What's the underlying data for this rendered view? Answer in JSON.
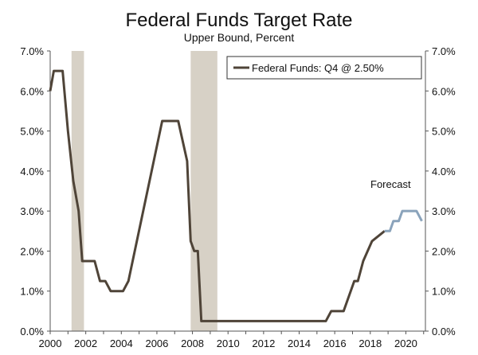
{
  "chart_data": {
    "type": "line",
    "title": "Federal Funds Target Rate",
    "subtitle": "Upper Bound, Percent",
    "xlabel": "",
    "ylabel": "",
    "xlim": [
      2000,
      2021.1
    ],
    "ylim": [
      0,
      7
    ],
    "y_ticks": [
      {
        "value": 0,
        "label": "0.0%"
      },
      {
        "value": 1,
        "label": "1.0%"
      },
      {
        "value": 2,
        "label": "2.0%"
      },
      {
        "value": 3,
        "label": "3.0%"
      },
      {
        "value": 4,
        "label": "4.0%"
      },
      {
        "value": 5,
        "label": "5.0%"
      },
      {
        "value": 6,
        "label": "6.0%"
      },
      {
        "value": 7,
        "label": "7.0%"
      }
    ],
    "x_ticks": [
      {
        "value": 2000,
        "label": "2000"
      },
      {
        "value": 2002,
        "label": "2002"
      },
      {
        "value": 2004,
        "label": "2004"
      },
      {
        "value": 2006,
        "label": "2006"
      },
      {
        "value": 2008,
        "label": "2008"
      },
      {
        "value": 2010,
        "label": "2010"
      },
      {
        "value": 2012,
        "label": "2012"
      },
      {
        "value": 2014,
        "label": "2014"
      },
      {
        "value": 2016,
        "label": "2016"
      },
      {
        "value": 2018,
        "label": "2018"
      },
      {
        "value": 2020,
        "label": "2020"
      }
    ],
    "recessions": [
      {
        "start": 2001.2,
        "end": 2001.9
      },
      {
        "start": 2007.9,
        "end": 2009.4
      }
    ],
    "legend": {
      "label": "Federal Funds: Q4 @ 2.50%",
      "position": "top-right"
    },
    "annotation": {
      "text": "Forecast"
    },
    "series": [
      {
        "name": "Federal Funds (Actual)",
        "color": "#4f4438",
        "points": [
          [
            2000.0,
            6.0
          ],
          [
            2000.2,
            6.5
          ],
          [
            2000.7,
            6.5
          ],
          [
            2001.0,
            5.0
          ],
          [
            2001.3,
            3.75
          ],
          [
            2001.6,
            3.0
          ],
          [
            2001.8,
            1.75
          ],
          [
            2002.5,
            1.75
          ],
          [
            2002.8,
            1.25
          ],
          [
            2003.1,
            1.25
          ],
          [
            2003.4,
            1.0
          ],
          [
            2004.1,
            1.0
          ],
          [
            2004.4,
            1.25
          ],
          [
            2006.3,
            5.25
          ],
          [
            2007.2,
            5.25
          ],
          [
            2007.7,
            4.25
          ],
          [
            2007.9,
            2.25
          ],
          [
            2008.1,
            2.0
          ],
          [
            2008.3,
            2.0
          ],
          [
            2008.5,
            0.25
          ],
          [
            2015.5,
            0.25
          ],
          [
            2015.8,
            0.5
          ],
          [
            2016.5,
            0.5
          ],
          [
            2017.1,
            1.25
          ],
          [
            2017.3,
            1.25
          ],
          [
            2017.6,
            1.75
          ],
          [
            2018.1,
            2.25
          ],
          [
            2018.8,
            2.5
          ]
        ]
      },
      {
        "name": "Federal Funds (Forecast)",
        "color": "#8aa3bb",
        "points": [
          [
            2018.8,
            2.5
          ],
          [
            2019.1,
            2.5
          ],
          [
            2019.3,
            2.75
          ],
          [
            2019.6,
            2.75
          ],
          [
            2019.8,
            3.0
          ],
          [
            2020.6,
            3.0
          ],
          [
            2020.9,
            2.75
          ]
        ]
      }
    ],
    "colors": {
      "recession": "#d7d1c6",
      "axis": "#555555"
    }
  }
}
